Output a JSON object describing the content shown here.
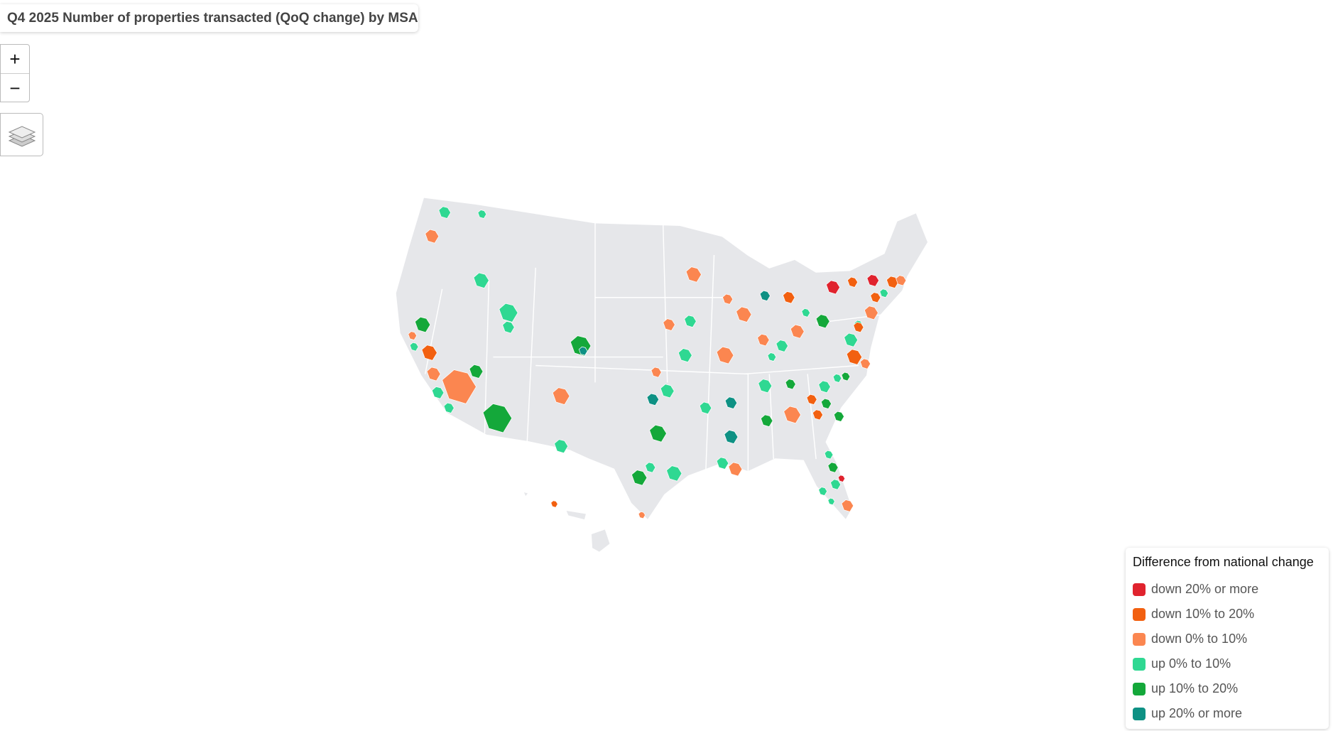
{
  "header": {
    "title": "Q4 2025 Number of properties transacted (QoQ change) by MSA"
  },
  "controls": {
    "zoom_in": "+",
    "zoom_out": "−"
  },
  "legend": {
    "title": "Difference from national change",
    "items": [
      {
        "label": "down 20% or more",
        "color": "#e0232e"
      },
      {
        "label": "down 10% to 20%",
        "color": "#f26010"
      },
      {
        "label": "down 0% to 10%",
        "color": "#fb8650"
      },
      {
        "label": "up 0% to 10%",
        "color": "#2fd892"
      },
      {
        "label": "up 10% to 20%",
        "color": "#14a83a"
      },
      {
        "label": "up 20% or more",
        "color": "#0e9184"
      }
    ]
  }
}
